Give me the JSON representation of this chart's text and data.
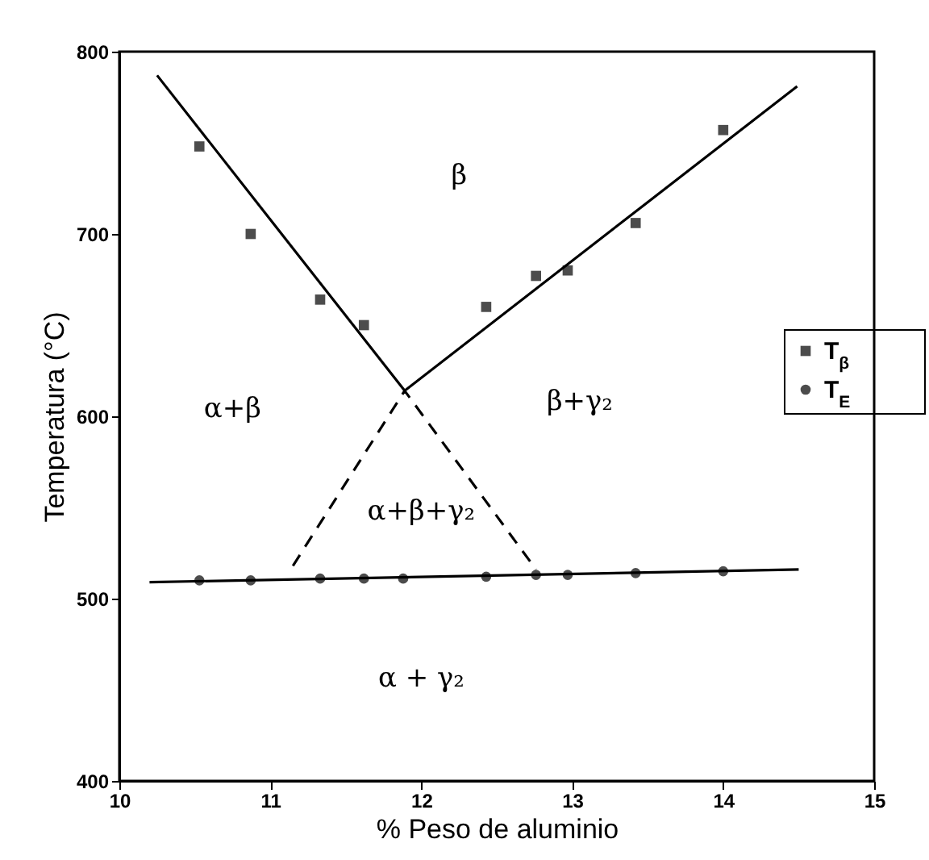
{
  "chart_data": {
    "type": "scatter",
    "xlabel": "% Peso de aluminio",
    "ylabel": "Temperatura (°C)",
    "xlim": [
      10,
      15
    ],
    "xticks": [
      10,
      11,
      12,
      13,
      14,
      15
    ],
    "ylim": [
      400,
      800
    ],
    "yticks": [
      400,
      500,
      600,
      700,
      800
    ],
    "grid": false,
    "legend": "right",
    "series": [
      {
        "name": "T$_{β}$",
        "marker": "square",
        "color": "#000000",
        "x": [
          10.53,
          10.87,
          11.33,
          11.62,
          12.43,
          12.76,
          12.97,
          13.42,
          14.0
        ],
        "values": [
          748,
          700,
          664,
          650,
          660,
          677,
          680,
          706,
          757
        ]
      },
      {
        "name": "T$_{E}$",
        "marker": "circle",
        "color": "#000000",
        "x": [
          10.53,
          10.87,
          11.33,
          11.62,
          11.88,
          12.43,
          12.76,
          12.97,
          13.42,
          14.0
        ],
        "values": [
          510,
          510,
          511,
          511,
          511,
          512,
          513,
          513,
          514,
          515
        ]
      },
      {
        "type": "line",
        "color": "#000000",
        "line_style": "solid",
        "x": [
          10.25,
          11.89,
          14.49
        ],
        "values": [
          787,
          614,
          781
        ]
      },
      {
        "type": "line",
        "color": "#000000",
        "line_style": "solid",
        "x": [
          10.2,
          14.5
        ],
        "values": [
          509,
          516
        ]
      },
      {
        "type": "line",
        "color": "#000000",
        "line_style": "dashed",
        "x": [
          11.15,
          11.89,
          12.76
        ],
        "values": [
          518,
          614,
          516
        ]
      }
    ],
    "annotations": [
      "β",
      "α+β",
      "β+γ₂",
      "α+β+γ₂",
      "α + γ₂"
    ]
  }
}
